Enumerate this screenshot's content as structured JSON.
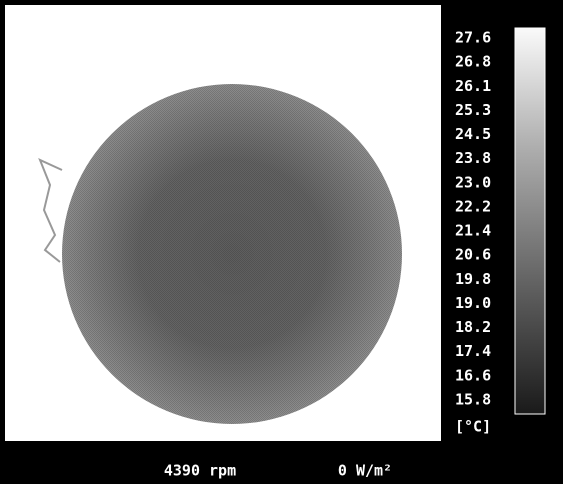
{
  "scale": {
    "labels": [
      "27.6",
      "26.8",
      "26.1",
      "25.3",
      "24.5",
      "23.8",
      "23.0",
      "22.2",
      "21.4",
      "20.6",
      "19.8",
      "19.0",
      "18.2",
      "17.4",
      "16.6",
      "15.8"
    ],
    "unit": "[°C]"
  },
  "footer": {
    "speed": "4390 rpm",
    "heat_flux": "0 W/m²"
  }
}
